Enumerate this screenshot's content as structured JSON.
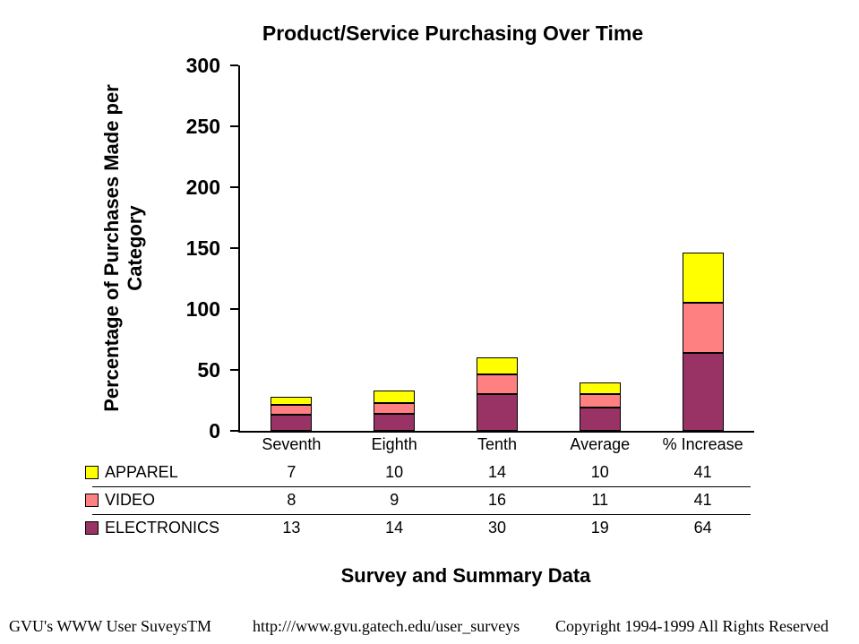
{
  "chart_data": {
    "type": "bar",
    "stacked": true,
    "title": "Product/Service Purchasing Over Time",
    "categories": [
      "Seventh",
      "Eighth",
      "Tenth",
      "Average",
      "% Increase"
    ],
    "series": [
      {
        "name": "APPAREL",
        "color": "#FFFF00",
        "values": [
          7,
          10,
          14,
          10,
          41
        ]
      },
      {
        "name": "VIDEO",
        "color": "#FF8080",
        "values": [
          8,
          9,
          16,
          11,
          41
        ]
      },
      {
        "name": "ELECTRONICS",
        "color": "#993366",
        "values": [
          13,
          14,
          30,
          19,
          64
        ]
      }
    ],
    "stack_order_bottom_to_top": [
      "ELECTRONICS",
      "VIDEO",
      "APPAREL"
    ],
    "stack_totals": [
      28,
      33,
      60,
      40,
      146
    ],
    "ylabel": "Percentage of Purchases Made per Category",
    "ylabel_lines": [
      "Percentage of Purchases Made per",
      "Category"
    ],
    "xlabel": "Survey and Summary Data",
    "ylim": [
      0,
      300
    ],
    "yticks": [
      0,
      50,
      100,
      150,
      200,
      250,
      300
    ],
    "grid": false,
    "legend_position": "table rows left of values",
    "bar_border_color": "#000000",
    "axis_color": "#000000",
    "background_color": "#FFFFFF"
  },
  "footer": {
    "left": "GVU's WWW User SuveysTM",
    "center": "http:///www.gvu.gatech.edu/user_surveys",
    "right": "Copyright 1994-1999 All Rights Reserved"
  }
}
